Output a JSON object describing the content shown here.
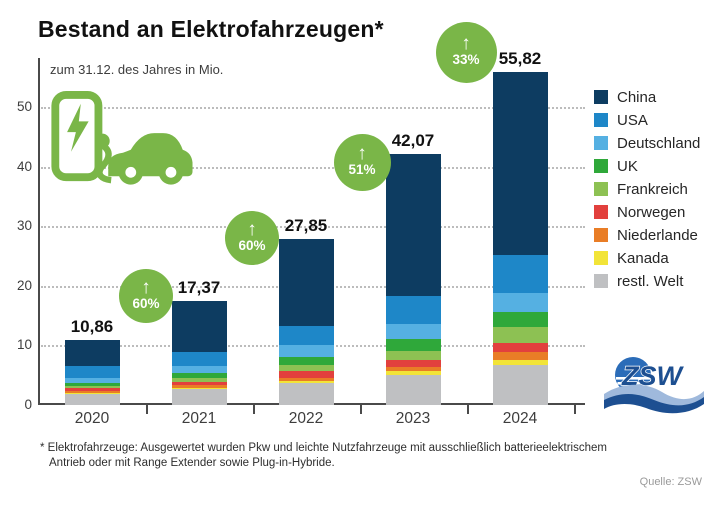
{
  "title": "Bestand an Elektrofahrzeugen*",
  "subtitle": "zum 31.12. des Jahres in Mio.",
  "footnote": {
    "line1": "* Elektrofahrzeuge: Ausgewertet wurden Pkw und leichte Nutzfahrzeuge mit ausschließlich batterieelektrischem",
    "line2": "Antrieb oder mit Range Extender sowie Plug-in-Hybride."
  },
  "source": "Quelle: ZSW",
  "logo": {
    "text": "ZSW"
  },
  "icons": {
    "car_charging": "ev-charging-car-icon",
    "arrow_up": "↑"
  },
  "colors": {
    "accent_green": "#7ab648",
    "axis": "#4a4a4a",
    "grid": "#bcbcbc",
    "logo_blue": "#1d4f91",
    "logo_globe": "#2b6cb8",
    "logo_wave_light": "#9fb9dc"
  },
  "growth_badges": [
    {
      "year": "2021",
      "label": "60%"
    },
    {
      "year": "2022",
      "label": "60%"
    },
    {
      "year": "2023",
      "label": "51%"
    },
    {
      "year": "2024",
      "label": "33%"
    }
  ],
  "chart_data": {
    "type": "bar",
    "stacked": true,
    "title": "Bestand an Elektrofahrzeugen",
    "subtitle": "zum 31.12. des Jahres in Mio.",
    "categories": [
      "2020",
      "2021",
      "2022",
      "2023",
      "2024"
    ],
    "totals": [
      10.86,
      17.37,
      27.85,
      42.07,
      55.82
    ],
    "total_labels": [
      "10,86",
      "17,37",
      "27,85",
      "42,07",
      "55,82"
    ],
    "growth_pct": [
      60,
      60,
      51,
      33
    ],
    "yticks": [
      0,
      10,
      20,
      30,
      40,
      50
    ],
    "ylim": [
      0,
      58
    ],
    "grid": "dotted-horizontal",
    "legend_position": "right",
    "series": [
      {
        "name": "China",
        "color": "#0d3c61",
        "values": [
          4.4,
          8.5,
          14.6,
          23.7,
          30.7
        ]
      },
      {
        "name": "USA",
        "color": "#1e87c8",
        "values": [
          2.0,
          2.3,
          3.25,
          4.8,
          6.3
        ]
      },
      {
        "name": "Deutschland",
        "color": "#55b0e2",
        "values": [
          0.7,
          1.25,
          1.95,
          2.55,
          3.2
        ]
      },
      {
        "name": "UK",
        "color": "#2fa83a",
        "values": [
          0.5,
          0.75,
          1.4,
          2.0,
          2.6
        ]
      },
      {
        "name": "Frankreich",
        "color": "#8dc153",
        "values": [
          0.4,
          0.65,
          0.95,
          1.4,
          2.55
        ]
      },
      {
        "name": "Norwegen",
        "color": "#e2403d",
        "values": [
          0.5,
          0.65,
          1.1,
          1.3,
          1.65
        ]
      },
      {
        "name": "Niederlande",
        "color": "#e97d26",
        "values": [
          0.3,
          0.4,
          0.55,
          0.7,
          1.3
        ]
      },
      {
        "name": "Kanada",
        "color": "#f2e438",
        "values": [
          0.2,
          0.27,
          0.45,
          0.65,
          0.8
        ]
      },
      {
        "name": "restl. Welt",
        "color": "#bfc0c2",
        "values": [
          1.86,
          2.6,
          3.6,
          4.97,
          6.72
        ]
      }
    ]
  }
}
